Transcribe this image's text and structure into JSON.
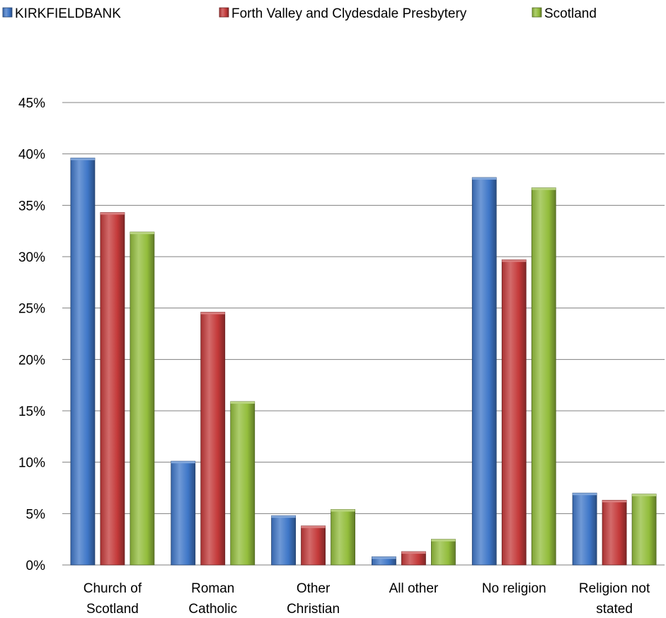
{
  "chart_data": {
    "type": "bar",
    "categories": [
      [
        "Church of",
        "Scotland"
      ],
      [
        "Roman",
        "Catholic"
      ],
      [
        "Other",
        "Christian"
      ],
      [
        "All other"
      ],
      [
        "No religion"
      ],
      [
        "Religion not",
        "stated"
      ]
    ],
    "series": [
      {
        "name": "KIRKFIELDBANK",
        "color": "#3f77c8",
        "values": [
          39.6,
          10.1,
          4.8,
          0.8,
          37.7,
          7.0
        ]
      },
      {
        "name": "Forth Valley and Clydesdale Presbytery",
        "color": "#c43a3a",
        "values": [
          34.3,
          24.6,
          3.8,
          1.3,
          29.7,
          6.3
        ]
      },
      {
        "name": "Scotland",
        "color": "#93bd3c",
        "values": [
          32.4,
          15.9,
          5.4,
          2.5,
          36.7,
          6.9
        ]
      }
    ],
    "yticks": [
      "0%",
      "5%",
      "10%",
      "15%",
      "20%",
      "25%",
      "30%",
      "35%",
      "40%",
      "45%"
    ],
    "ylim": [
      0,
      45
    ],
    "grid": true,
    "legend_position": "top"
  }
}
